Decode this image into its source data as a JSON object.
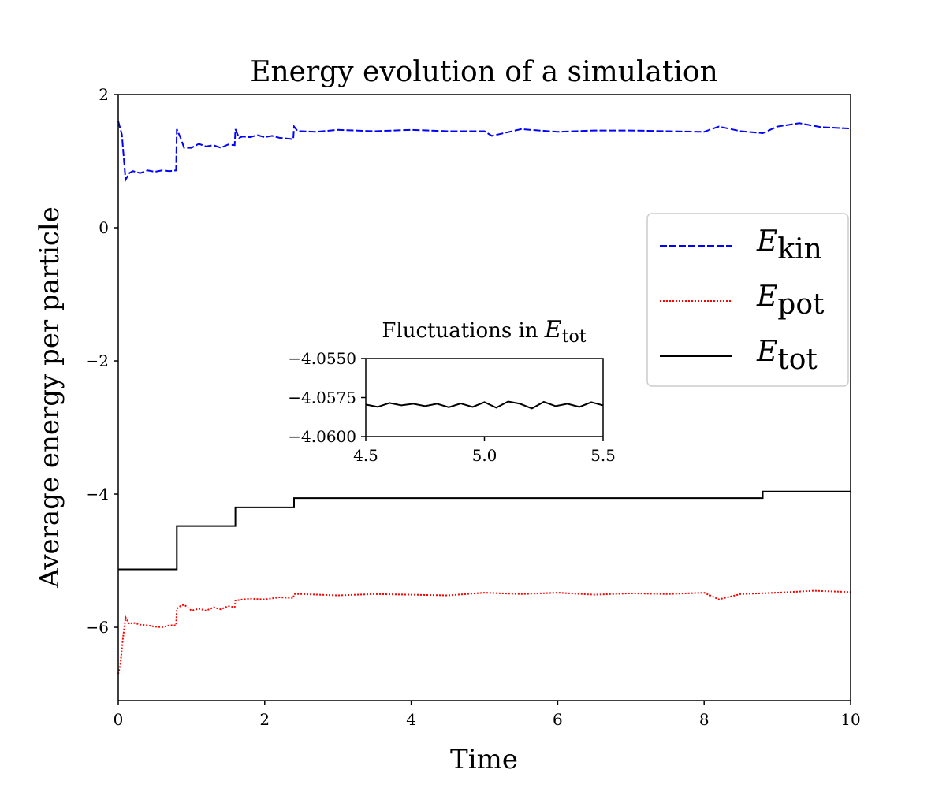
{
  "chart_data": {
    "type": "line",
    "title": "Energy evolution of a simulation",
    "xlabel": "Time",
    "ylabel": "Average energy per particle",
    "xlim": [
      0,
      10
    ],
    "ylim": [
      -7.1,
      2
    ],
    "xticks": [
      0,
      2,
      4,
      6,
      8,
      10
    ],
    "yticks": [
      -6,
      -4,
      -2,
      0,
      2
    ],
    "xtick_labels": [
      "0",
      "2",
      "4",
      "6",
      "8",
      "10"
    ],
    "ytick_labels": [
      "−6",
      "−4",
      "−2",
      "0",
      "2"
    ],
    "grid": false,
    "legend": {
      "placement": "right",
      "entries": [
        {
          "name": "E",
          "sub": "kin",
          "color": "#0000ff",
          "style": "dashed"
        },
        {
          "name": "E",
          "sub": "pot",
          "color": "#ff0000",
          "style": "dotted"
        },
        {
          "name": "E",
          "sub": "tot",
          "color": "#000000",
          "style": "solid"
        }
      ]
    },
    "series": [
      {
        "key": "E_kin",
        "color": "#0000ff",
        "style": "dashed",
        "x": [
          0,
          0.05,
          0.1,
          0.15,
          0.2,
          0.3,
          0.4,
          0.5,
          0.6,
          0.7,
          0.79,
          0.8,
          0.85,
          0.9,
          1.0,
          1.1,
          1.2,
          1.3,
          1.4,
          1.5,
          1.59,
          1.6,
          1.65,
          1.7,
          1.8,
          1.9,
          2.0,
          2.1,
          2.2,
          2.3,
          2.39,
          2.4,
          2.45,
          2.5,
          2.7,
          3.0,
          3.5,
          4.0,
          4.5,
          5.0,
          5.1,
          5.5,
          6.0,
          6.5,
          7.0,
          7.5,
          8.0,
          8.2,
          8.5,
          8.8,
          9.0,
          9.3,
          9.6,
          10.0
        ],
        "y": [
          1.6,
          1.4,
          0.72,
          0.82,
          0.85,
          0.82,
          0.86,
          0.84,
          0.86,
          0.85,
          0.86,
          1.48,
          1.35,
          1.2,
          1.2,
          1.26,
          1.22,
          1.24,
          1.2,
          1.25,
          1.24,
          1.48,
          1.35,
          1.37,
          1.36,
          1.39,
          1.36,
          1.38,
          1.35,
          1.34,
          1.33,
          1.52,
          1.45,
          1.45,
          1.44,
          1.47,
          1.45,
          1.47,
          1.45,
          1.45,
          1.38,
          1.48,
          1.44,
          1.46,
          1.46,
          1.45,
          1.44,
          1.52,
          1.45,
          1.42,
          1.52,
          1.57,
          1.51,
          1.49
        ]
      },
      {
        "key": "E_pot",
        "color": "#ff0000",
        "style": "dotted",
        "x": [
          0,
          0.03,
          0.06,
          0.1,
          0.15,
          0.2,
          0.3,
          0.4,
          0.5,
          0.6,
          0.7,
          0.79,
          0.8,
          0.85,
          0.9,
          1.0,
          1.1,
          1.2,
          1.3,
          1.4,
          1.5,
          1.59,
          1.6,
          1.7,
          1.8,
          2.0,
          2.2,
          2.39,
          2.4,
          2.5,
          3.0,
          3.5,
          4.0,
          4.5,
          5.0,
          5.5,
          6.0,
          6.5,
          7.0,
          7.5,
          8.0,
          8.2,
          8.5,
          9.0,
          9.5,
          10.0
        ],
        "y": [
          -6.7,
          -6.55,
          -6.2,
          -5.85,
          -5.95,
          -5.93,
          -5.96,
          -5.97,
          -5.99,
          -6.0,
          -5.97,
          -5.97,
          -5.72,
          -5.68,
          -5.66,
          -5.75,
          -5.72,
          -5.75,
          -5.7,
          -5.73,
          -5.68,
          -5.7,
          -5.6,
          -5.58,
          -5.57,
          -5.58,
          -5.55,
          -5.56,
          -5.5,
          -5.5,
          -5.52,
          -5.5,
          -5.51,
          -5.52,
          -5.48,
          -5.5,
          -5.48,
          -5.51,
          -5.49,
          -5.5,
          -5.48,
          -5.58,
          -5.5,
          -5.48,
          -5.45,
          -5.47
        ]
      },
      {
        "key": "E_tot",
        "color": "#000000",
        "style": "solid",
        "x": [
          0,
          0.8,
          0.8,
          1.6,
          1.6,
          2.4,
          2.4,
          8.8,
          8.8,
          10
        ],
        "y": [
          -5.13,
          -5.13,
          -4.48,
          -4.48,
          -4.2,
          -4.2,
          -4.06,
          -4.06,
          -3.96,
          -3.96
        ]
      }
    ],
    "inset": {
      "title": "Fluctuations in ",
      "title_var": "E",
      "title_sub": "tot",
      "xlim": [
        4.5,
        5.5
      ],
      "ylim": [
        -4.06,
        -4.055
      ],
      "xticks": [
        4.5,
        5.0,
        5.5
      ],
      "xtick_labels": [
        "4.5",
        "5.0",
        "5.5"
      ],
      "yticks": [
        -4.06,
        -4.0575,
        -4.055
      ],
      "ytick_labels": [
        "−4.0600",
        "−4.0575",
        "−4.0550"
      ],
      "series": {
        "color": "#000000",
        "x": [
          4.5,
          4.55,
          4.6,
          4.65,
          4.7,
          4.75,
          4.8,
          4.85,
          4.9,
          4.95,
          5.0,
          5.05,
          5.1,
          5.15,
          5.2,
          5.25,
          5.3,
          5.35,
          5.4,
          5.45,
          5.5
        ],
        "y": [
          -4.05795,
          -4.0581,
          -4.05785,
          -4.058,
          -4.0579,
          -4.05805,
          -4.0579,
          -4.05812,
          -4.05788,
          -4.0581,
          -4.0578,
          -4.05815,
          -4.05775,
          -4.0579,
          -4.0582,
          -4.05778,
          -4.05805,
          -4.0579,
          -4.0581,
          -4.0578,
          -4.058
        ]
      }
    }
  }
}
